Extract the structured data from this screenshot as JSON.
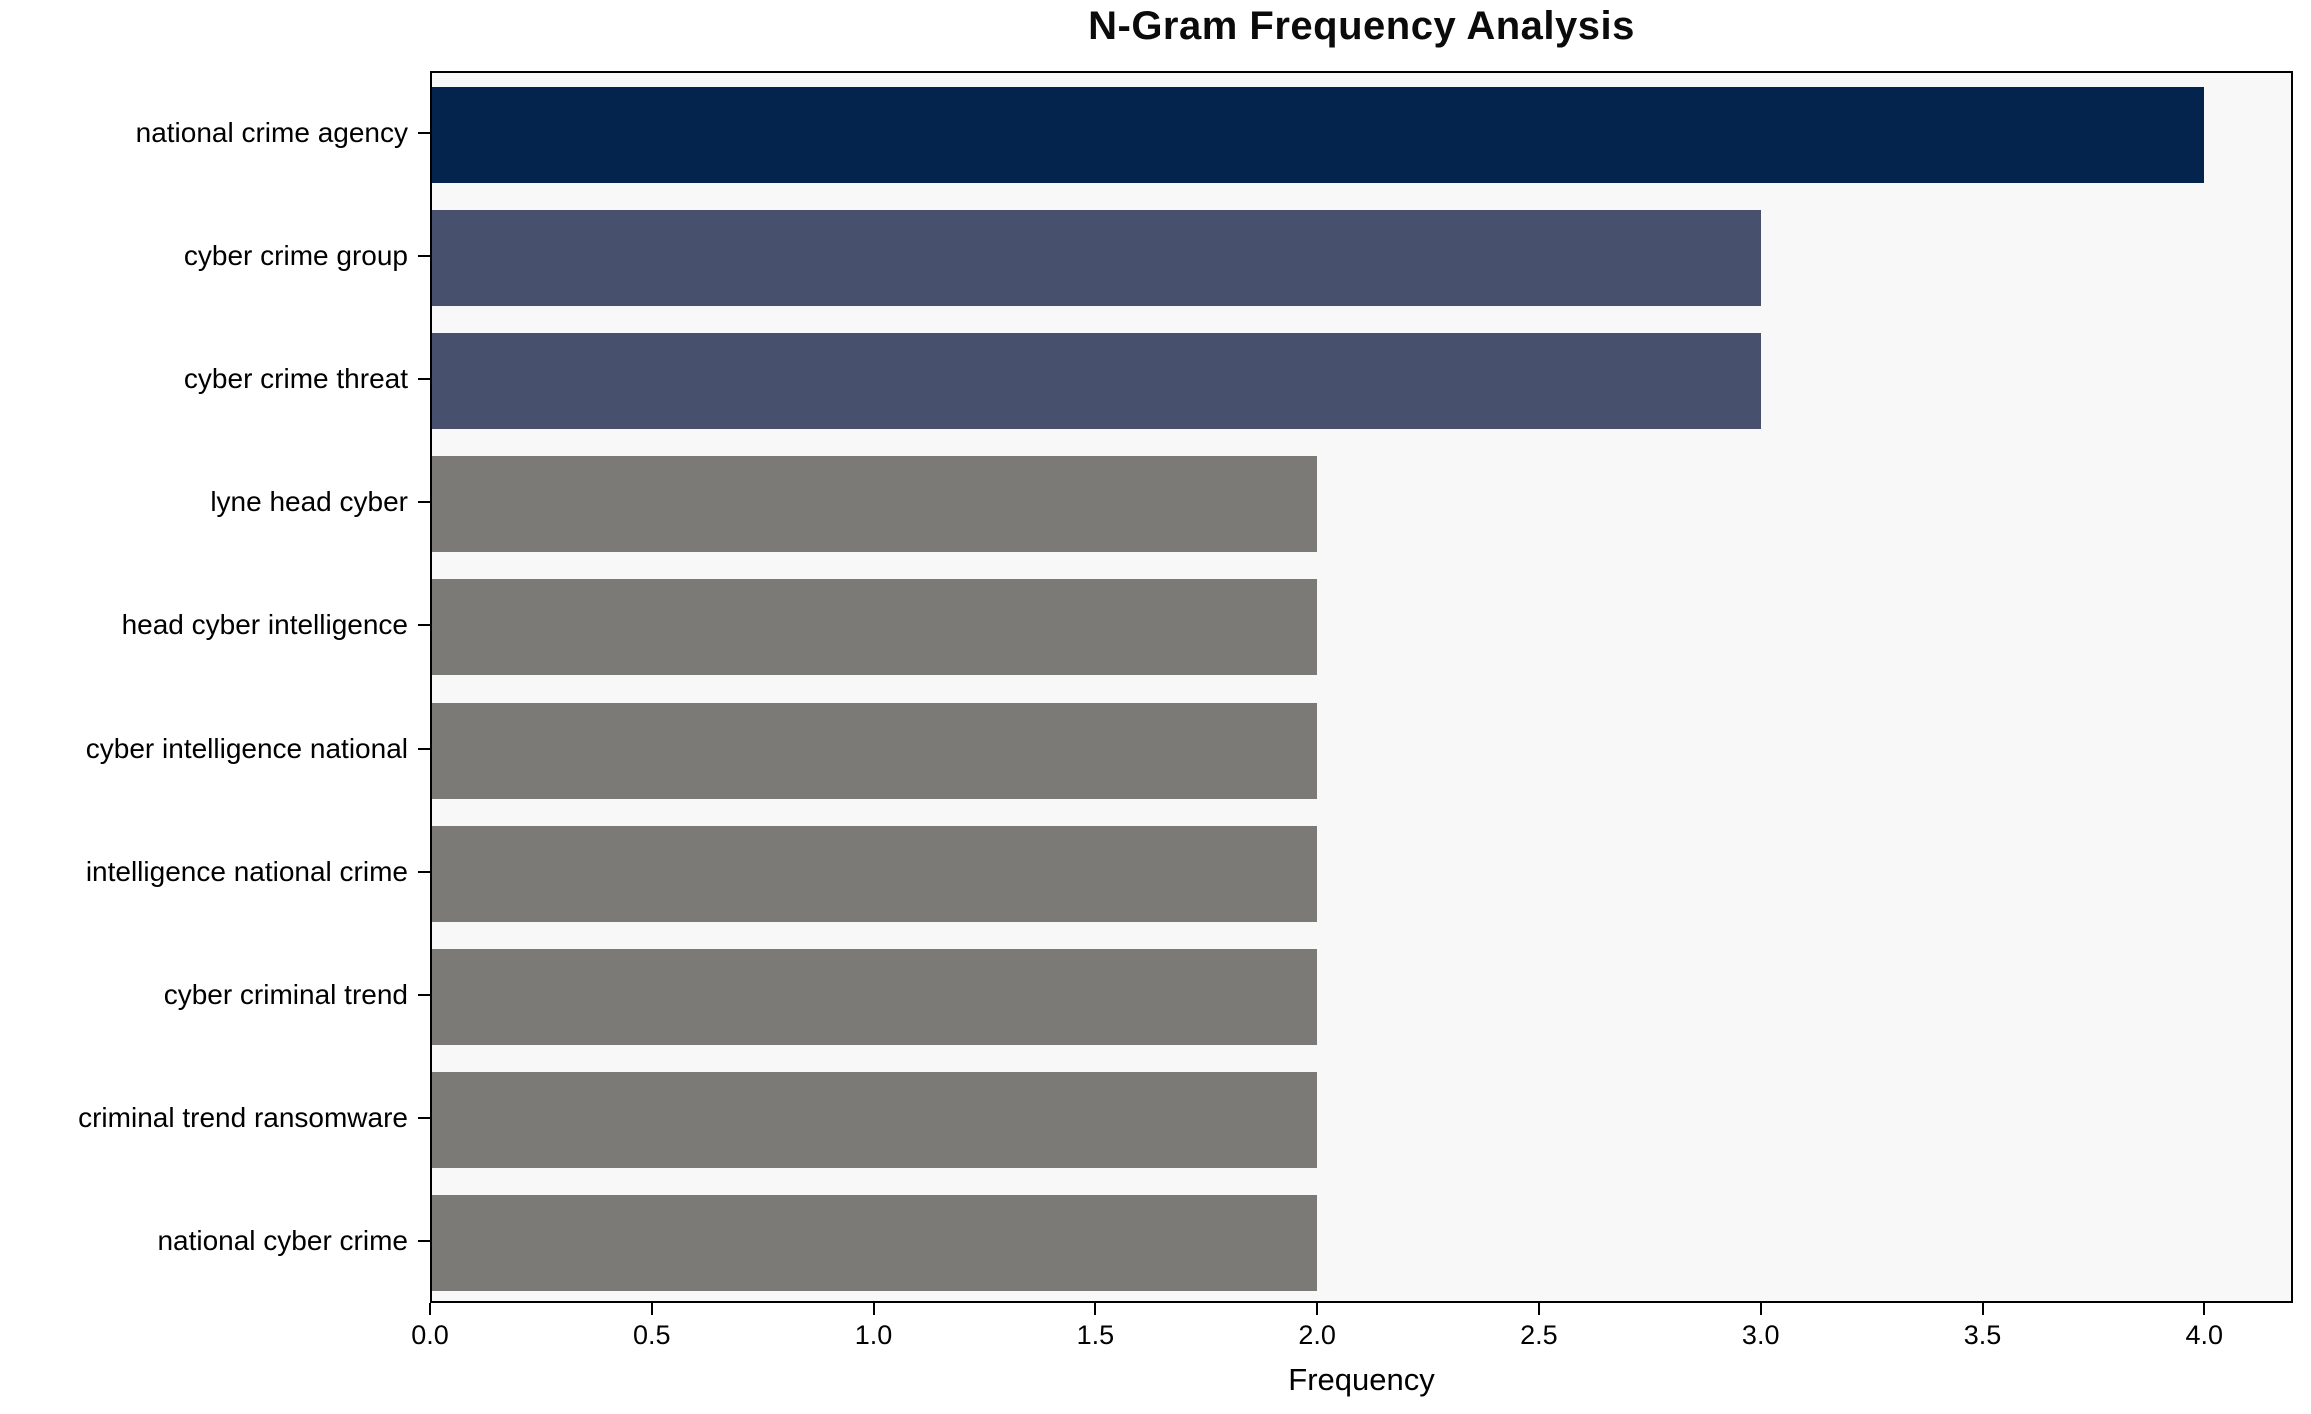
{
  "chart_data": {
    "type": "bar",
    "orientation": "horizontal",
    "title": "N-Gram Frequency Analysis",
    "xlabel": "Frequency",
    "ylabel": "",
    "categories": [
      "national crime agency",
      "cyber crime group",
      "cyber crime threat",
      "lyne head cyber",
      "head cyber intelligence",
      "cyber intelligence national",
      "intelligence national crime",
      "cyber criminal trend",
      "criminal trend ransomware",
      "national cyber crime"
    ],
    "values": [
      4,
      3,
      3,
      2,
      2,
      2,
      2,
      2,
      2,
      2
    ],
    "bar_colors": [
      "#04234d",
      "#47516e",
      "#47516e",
      "#7b7a76",
      "#7b7a76",
      "#7b7a76",
      "#7b7a76",
      "#7b7a76",
      "#7b7a76",
      "#7b7a76"
    ],
    "xlim": [
      0,
      4.2
    ],
    "xtick_values": [
      0,
      0.5,
      1,
      1.5,
      2,
      2.5,
      3,
      3.5,
      4
    ],
    "xtick_labels": [
      "0.0",
      "0.5",
      "1.0",
      "1.5",
      "2.0",
      "2.5",
      "3.0",
      "3.5",
      "4.0"
    ],
    "grid": false,
    "legend_position": "none",
    "colors": {
      "plot_background": "#f8f8f8",
      "page_background": "#ffffff",
      "axis_line": "#000000",
      "highlight_navy": "#04234d",
      "mid_slate": "#47516e",
      "base_gray": "#7b7a76"
    }
  }
}
